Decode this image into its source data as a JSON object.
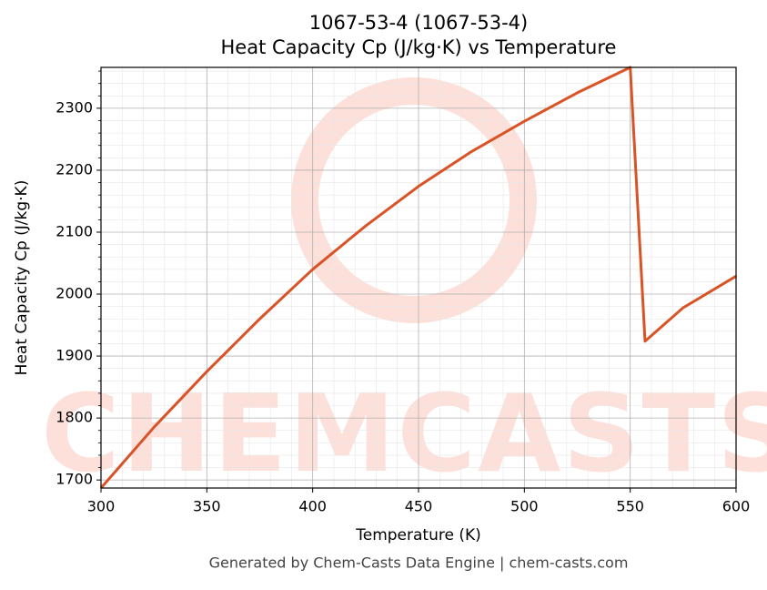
{
  "chart_data": {
    "type": "line",
    "title": "1067-53-4 (1067-53-4)",
    "subtitle": "Heat Capacity Cp (J/kg·K) vs Temperature",
    "x_label": "Temperature (K)",
    "y_label": "Heat Capacity Cp (J/kg·K)",
    "footer": "Generated by Chem-Casts Data Engine | chem-casts.com",
    "watermark": "CHEMCASTS",
    "x": [
      300,
      325,
      350,
      375,
      400,
      425,
      450,
      475,
      500,
      525,
      550,
      557,
      575,
      600
    ],
    "series": [
      {
        "name": "Cp",
        "color": "#d95326",
        "values": [
          1687,
          1785,
          1875,
          1960,
          2040,
          2110,
          2174,
          2230,
          2279,
          2325,
          2366,
          1924,
          1978,
          2029
        ]
      }
    ],
    "xlim": [
      300,
      600
    ],
    "xticks": [
      300,
      350,
      400,
      450,
      500,
      550,
      600
    ],
    "ylim": [
      1687,
      2366
    ],
    "yticks": [
      1700,
      1800,
      1900,
      2000,
      2100,
      2200,
      2300
    ],
    "grid": true,
    "minor_grid": true
  }
}
